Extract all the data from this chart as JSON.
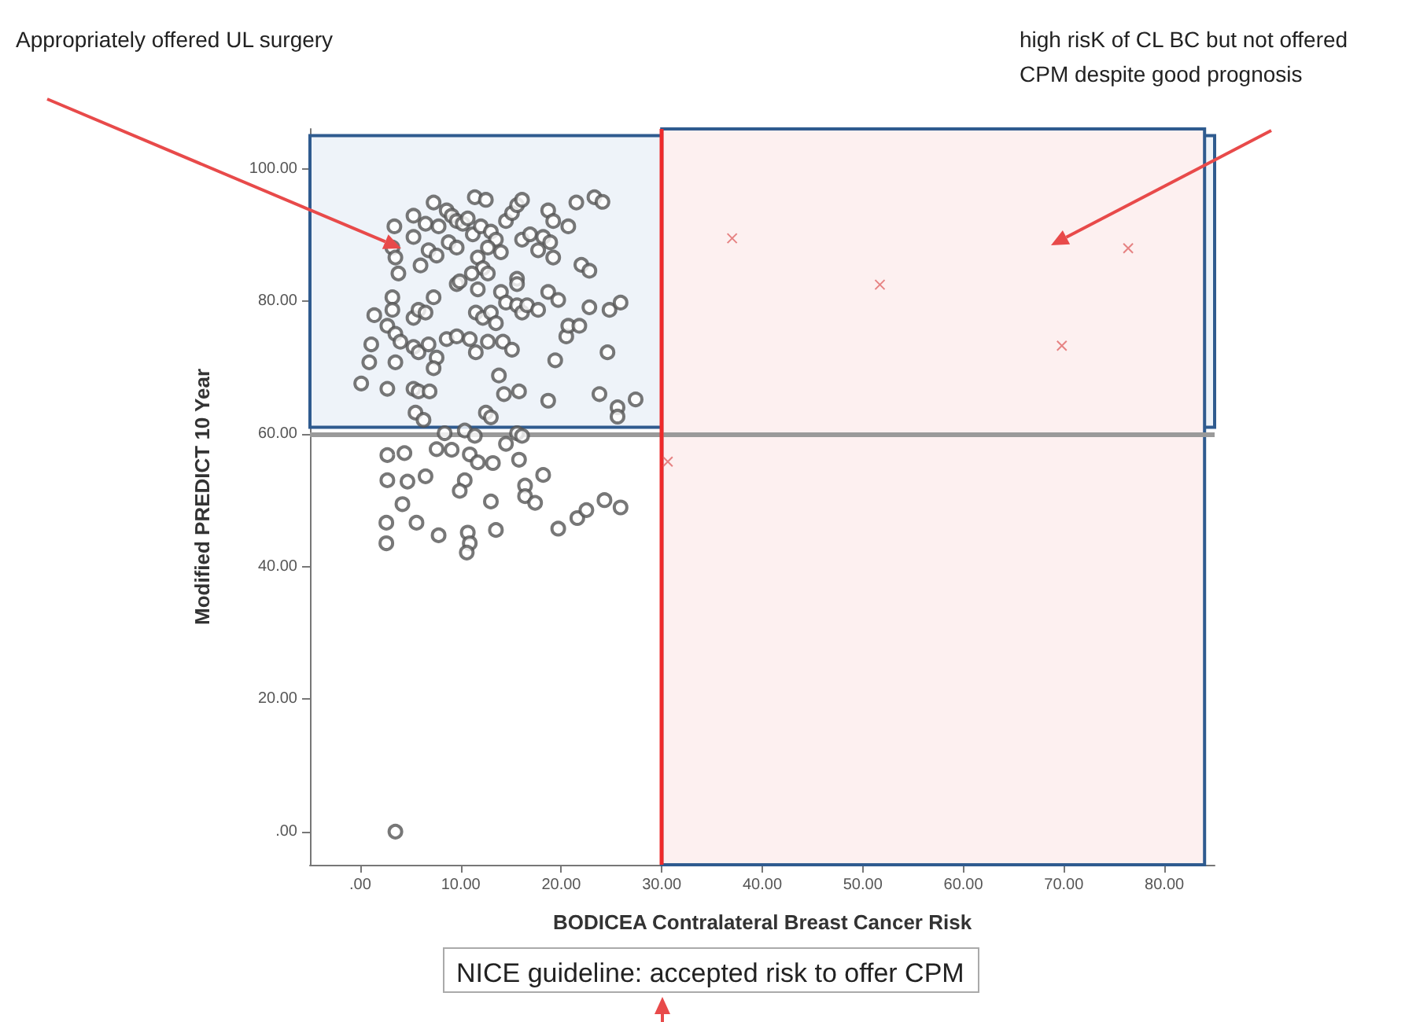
{
  "chart_data": {
    "type": "scatter",
    "xlabel": "BODICEA Contralateral Breast Cancer Risk",
    "ylabel": "Modified PREDICT 10 Year",
    "xlim": [
      -5,
      85
    ],
    "ylim": [
      -5,
      106
    ],
    "xticks": [
      {
        "value": 0,
        "label": ".00"
      },
      {
        "value": 10,
        "label": "10.00"
      },
      {
        "value": 20,
        "label": "20.00"
      },
      {
        "value": 30,
        "label": "30.00"
      },
      {
        "value": 40,
        "label": "40.00"
      },
      {
        "value": 50,
        "label": "50.00"
      },
      {
        "value": 60,
        "label": "60.00"
      },
      {
        "value": 70,
        "label": "70.00"
      },
      {
        "value": 80,
        "label": "80.00"
      }
    ],
    "yticks": [
      {
        "value": 0,
        "label": ".00"
      },
      {
        "value": 20,
        "label": "20.00"
      },
      {
        "value": 40,
        "label": "40.00"
      },
      {
        "value": 60,
        "label": "60.00"
      },
      {
        "value": 80,
        "label": "80.00"
      },
      {
        "value": 100,
        "label": "100.00"
      }
    ],
    "grid": false,
    "bands": [
      {
        "axis": "y",
        "from": 61,
        "to": 105,
        "color": "#eef3f9"
      },
      {
        "axis": "x",
        "from": 30,
        "to": 84,
        "color": "#fdf0f0"
      }
    ],
    "ref_lines": [
      {
        "axis": "y",
        "value": 60,
        "color": "#9a9a9a"
      },
      {
        "axis": "x",
        "value": 30,
        "color": "#ee2a2a"
      }
    ],
    "annotations": [
      "Appropriately offered UL surgery",
      "high risK of CL BC but not offered CPM despite good prognosis",
      "NICE guideline: accepted risk to offer CPM"
    ],
    "series": [
      {
        "color": "#555555",
        "marker": "circle",
        "x": [
          3.4,
          3.2,
          3.5,
          3.8,
          5.3,
          5.3,
          6.0,
          6.5,
          7.3,
          6.8,
          7.6,
          7.8,
          8.6,
          9.1,
          9.6,
          10.2,
          10.7,
          11.4,
          12.5,
          8.8,
          9.6,
          11.2,
          12.0,
          13.0,
          13.5,
          12.7,
          14.0,
          14.5,
          15.1,
          15.6,
          16.1,
          16.1,
          16.9,
          17.7,
          18.2,
          18.9,
          18.7,
          19.2,
          20.7,
          21.5,
          23.3,
          24.1,
          19.2,
          22.0,
          22.8,
          11.7,
          12.2,
          11.1,
          12.7,
          9.6,
          11.7,
          15.6,
          15.6,
          3.2,
          3.2,
          1.4,
          2.7,
          3.5,
          4.0,
          1.1,
          0.9,
          3.5,
          0.1,
          2.7,
          5.3,
          5.8,
          6.5,
          7.3,
          5.3,
          5.8,
          6.8,
          7.6,
          7.3,
          8.6,
          9.6,
          9.9,
          10.9,
          11.5,
          11.5,
          12.2,
          13.0,
          13.5,
          12.7,
          14.0,
          14.5,
          14.2,
          15.1,
          15.6,
          16.1,
          16.6,
          17.7,
          18.7,
          19.7,
          20.5,
          20.7,
          21.8,
          22.8,
          24.8,
          25.9,
          24.6,
          19.4,
          13.8,
          14.3,
          15.8,
          18.7,
          23.8,
          25.6,
          25.6,
          27.4,
          5.3,
          5.8,
          6.9,
          5.5,
          6.3,
          12.5,
          13.0,
          8.4,
          10.4,
          11.4,
          15.6,
          16.1,
          2.7,
          4.4,
          7.6,
          9.1,
          10.9,
          11.7,
          13.2,
          14.5,
          15.8,
          2.7,
          4.7,
          6.5,
          10.4,
          9.9,
          16.4,
          18.2,
          16.4,
          17.4,
          13.0,
          4.2,
          2.6,
          2.6,
          5.6,
          7.8,
          10.7,
          10.9,
          10.6,
          13.5,
          19.7,
          21.6,
          22.5,
          24.3,
          25.9,
          3.5
        ],
        "values": [
          91.3,
          88.1,
          86.6,
          84.2,
          92.9,
          89.7,
          85.4,
          91.7,
          94.9,
          87.7,
          86.9,
          91.3,
          93.7,
          92.9,
          92.1,
          91.7,
          92.5,
          95.7,
          95.3,
          88.9,
          88.1,
          90.1,
          91.3,
          90.5,
          89.3,
          88.1,
          87.4,
          92.1,
          93.3,
          94.5,
          95.3,
          89.3,
          90.1,
          87.7,
          89.7,
          88.9,
          93.7,
          92.1,
          91.3,
          94.9,
          95.7,
          95.0,
          86.6,
          85.5,
          84.6,
          86.6,
          85.0,
          84.2,
          84.2,
          82.6,
          81.8,
          83.4,
          82.6,
          80.6,
          78.7,
          77.9,
          76.3,
          75.1,
          73.9,
          73.5,
          70.8,
          70.8,
          67.6,
          66.8,
          77.5,
          78.7,
          78.3,
          80.6,
          73.1,
          72.3,
          73.5,
          71.5,
          69.9,
          74.3,
          74.7,
          83.0,
          74.3,
          78.3,
          72.3,
          77.5,
          78.3,
          76.7,
          73.9,
          81.4,
          79.8,
          73.9,
          72.7,
          79.4,
          78.3,
          79.4,
          78.7,
          81.4,
          80.2,
          74.7,
          76.3,
          76.3,
          79.1,
          78.7,
          79.8,
          72.3,
          71.1,
          68.8,
          66.0,
          66.4,
          65.0,
          66.0,
          64.0,
          62.6,
          65.2,
          66.8,
          66.4,
          66.4,
          63.2,
          62.1,
          63.2,
          62.5,
          60.1,
          60.5,
          59.7,
          60.1,
          59.7,
          56.8,
          57.1,
          57.7,
          57.6,
          56.9,
          55.7,
          55.6,
          58.5,
          56.1,
          53.0,
          52.8,
          53.6,
          53.0,
          51.4,
          52.2,
          53.8,
          50.6,
          49.6,
          49.8,
          49.4,
          46.6,
          43.5,
          46.6,
          44.7,
          45.1,
          43.5,
          42.1,
          45.5,
          45.7,
          47.3,
          48.5,
          50.0,
          48.9,
          0
        ]
      },
      {
        "color": "#e06666",
        "marker": "cross",
        "x": [
          37.0,
          51.7,
          76.4,
          69.8,
          30.6
        ],
        "values": [
          89.5,
          82.5,
          88.0,
          73.3,
          55.8
        ]
      }
    ]
  }
}
